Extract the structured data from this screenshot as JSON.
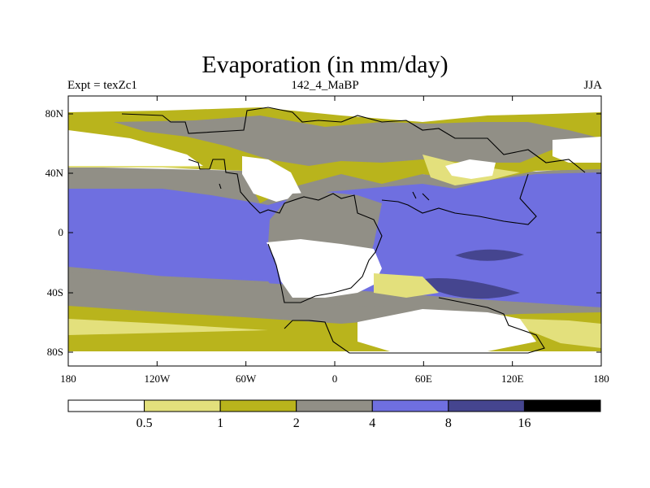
{
  "title": "Evaporation (in mm/day)",
  "left_string": "Expt = texZc1",
  "center_string": "142_4_MaBP",
  "right_string": "JJA",
  "lat_ticks": [
    "80N",
    "40N",
    "0",
    "40S",
    "80S"
  ],
  "lon_ticks": [
    "180",
    "120W",
    "60W",
    "0",
    "60E",
    "120E",
    "180"
  ],
  "colorbar": {
    "labels": [
      "0.5",
      "1",
      "2",
      "4",
      "8",
      "16"
    ],
    "colors": [
      "#ffffff",
      "#e3e07c",
      "#b9b41c",
      "#918f86",
      "#6f6fe0",
      "#45458f",
      "#000000"
    ]
  },
  "colors": {
    "white": "#ffffff",
    "light_yellow": "#e3e07c",
    "olive": "#b9b41c",
    "gray": "#918f86",
    "blue": "#6f6fe0",
    "dark_blue": "#45458f",
    "coast": "#000000"
  }
}
